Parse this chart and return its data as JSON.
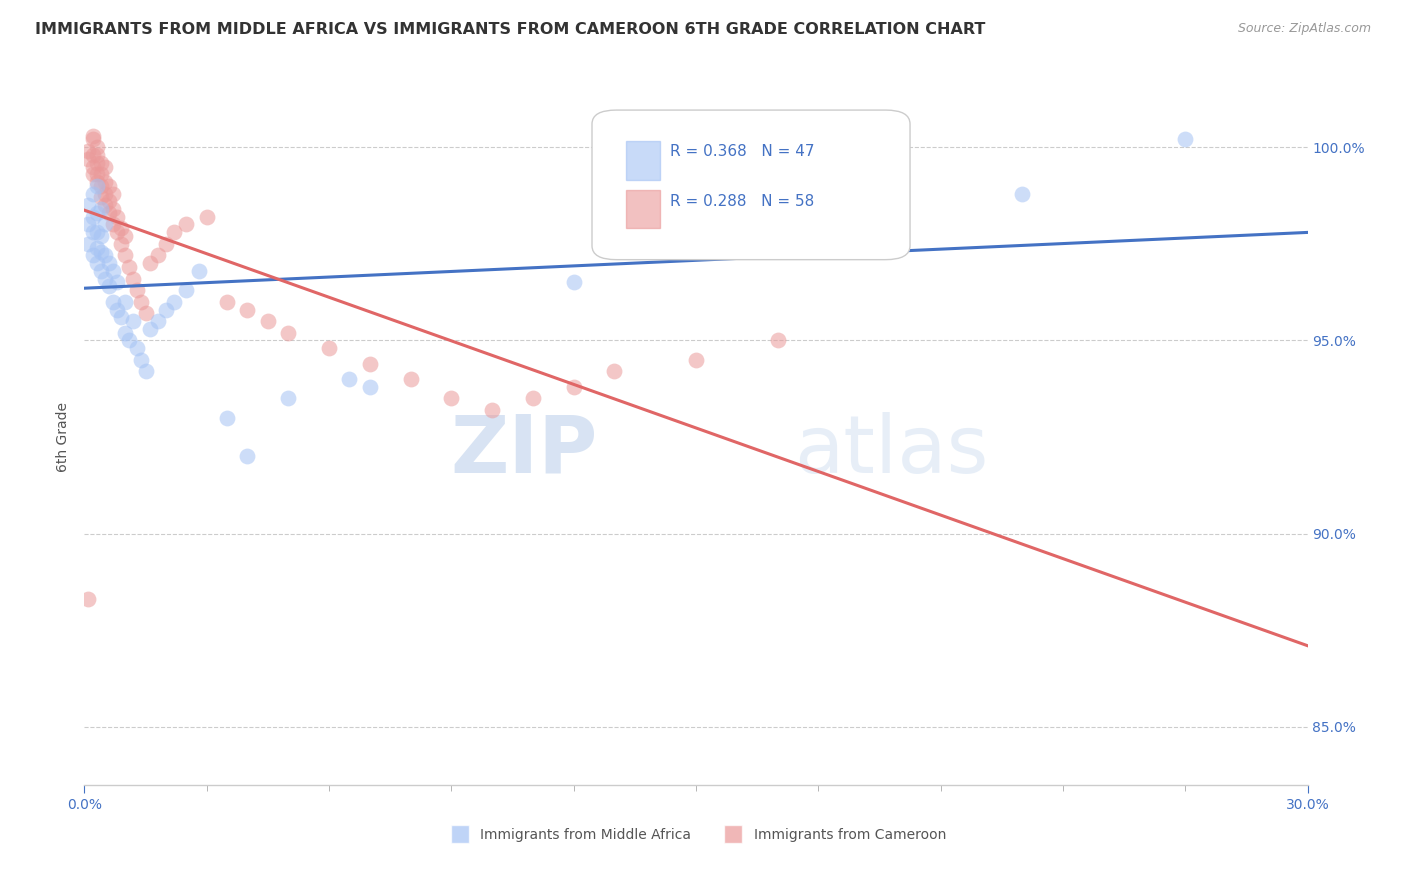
{
  "title": "IMMIGRANTS FROM MIDDLE AFRICA VS IMMIGRANTS FROM CAMEROON 6TH GRADE CORRELATION CHART",
  "source": "Source: ZipAtlas.com",
  "ylabel_left": "6th Grade",
  "ylim": [
    0.835,
    1.015
  ],
  "xlim": [
    0.0,
    0.3
  ],
  "yticks_right": [
    0.85,
    0.9,
    0.95,
    1.0
  ],
  "series1_label": "Immigrants from Middle Africa",
  "series1_color": "#a4c2f4",
  "series1_R": 0.368,
  "series1_N": 47,
  "series2_label": "Immigrants from Cameroon",
  "series2_color": "#ea9999",
  "series2_R": 0.288,
  "series2_N": 58,
  "line1_color": "#4472c4",
  "line2_color": "#e06666",
  "legend_color": "#4472c4",
  "watermark_zip": "ZIP",
  "watermark_atlas": "atlas",
  "blue_scatter_x": [
    0.001,
    0.001,
    0.001,
    0.002,
    0.002,
    0.002,
    0.002,
    0.003,
    0.003,
    0.003,
    0.003,
    0.003,
    0.004,
    0.004,
    0.004,
    0.004,
    0.005,
    0.005,
    0.005,
    0.006,
    0.006,
    0.007,
    0.007,
    0.008,
    0.008,
    0.009,
    0.01,
    0.01,
    0.011,
    0.012,
    0.013,
    0.014,
    0.015,
    0.016,
    0.018,
    0.02,
    0.022,
    0.025,
    0.028,
    0.035,
    0.04,
    0.05,
    0.065,
    0.07,
    0.12,
    0.23,
    0.27
  ],
  "blue_scatter_y": [
    0.975,
    0.98,
    0.985,
    0.972,
    0.978,
    0.982,
    0.988,
    0.97,
    0.974,
    0.978,
    0.983,
    0.99,
    0.968,
    0.973,
    0.977,
    0.984,
    0.966,
    0.972,
    0.98,
    0.964,
    0.97,
    0.96,
    0.968,
    0.958,
    0.965,
    0.956,
    0.952,
    0.96,
    0.95,
    0.955,
    0.948,
    0.945,
    0.942,
    0.953,
    0.955,
    0.958,
    0.96,
    0.963,
    0.968,
    0.93,
    0.92,
    0.935,
    0.94,
    0.938,
    0.965,
    0.988,
    1.002
  ],
  "pink_scatter_x": [
    0.001,
    0.001,
    0.001,
    0.002,
    0.002,
    0.002,
    0.002,
    0.002,
    0.003,
    0.003,
    0.003,
    0.003,
    0.003,
    0.004,
    0.004,
    0.004,
    0.004,
    0.005,
    0.005,
    0.005,
    0.005,
    0.006,
    0.006,
    0.006,
    0.007,
    0.007,
    0.007,
    0.008,
    0.008,
    0.009,
    0.009,
    0.01,
    0.01,
    0.011,
    0.012,
    0.013,
    0.014,
    0.015,
    0.016,
    0.018,
    0.02,
    0.022,
    0.025,
    0.03,
    0.035,
    0.04,
    0.045,
    0.05,
    0.06,
    0.07,
    0.08,
    0.09,
    0.1,
    0.11,
    0.12,
    0.13,
    0.15,
    0.17
  ],
  "pink_scatter_y": [
    0.883,
    0.997,
    0.999,
    0.993,
    0.995,
    0.998,
    1.002,
    1.003,
    0.991,
    0.993,
    0.996,
    0.998,
    1.0,
    0.987,
    0.99,
    0.993,
    0.996,
    0.985,
    0.988,
    0.991,
    0.995,
    0.983,
    0.986,
    0.99,
    0.98,
    0.984,
    0.988,
    0.978,
    0.982,
    0.975,
    0.979,
    0.972,
    0.977,
    0.969,
    0.966,
    0.963,
    0.96,
    0.957,
    0.97,
    0.972,
    0.975,
    0.978,
    0.98,
    0.982,
    0.96,
    0.958,
    0.955,
    0.952,
    0.948,
    0.944,
    0.94,
    0.935,
    0.932,
    0.935,
    0.938,
    0.942,
    0.945,
    0.95
  ]
}
